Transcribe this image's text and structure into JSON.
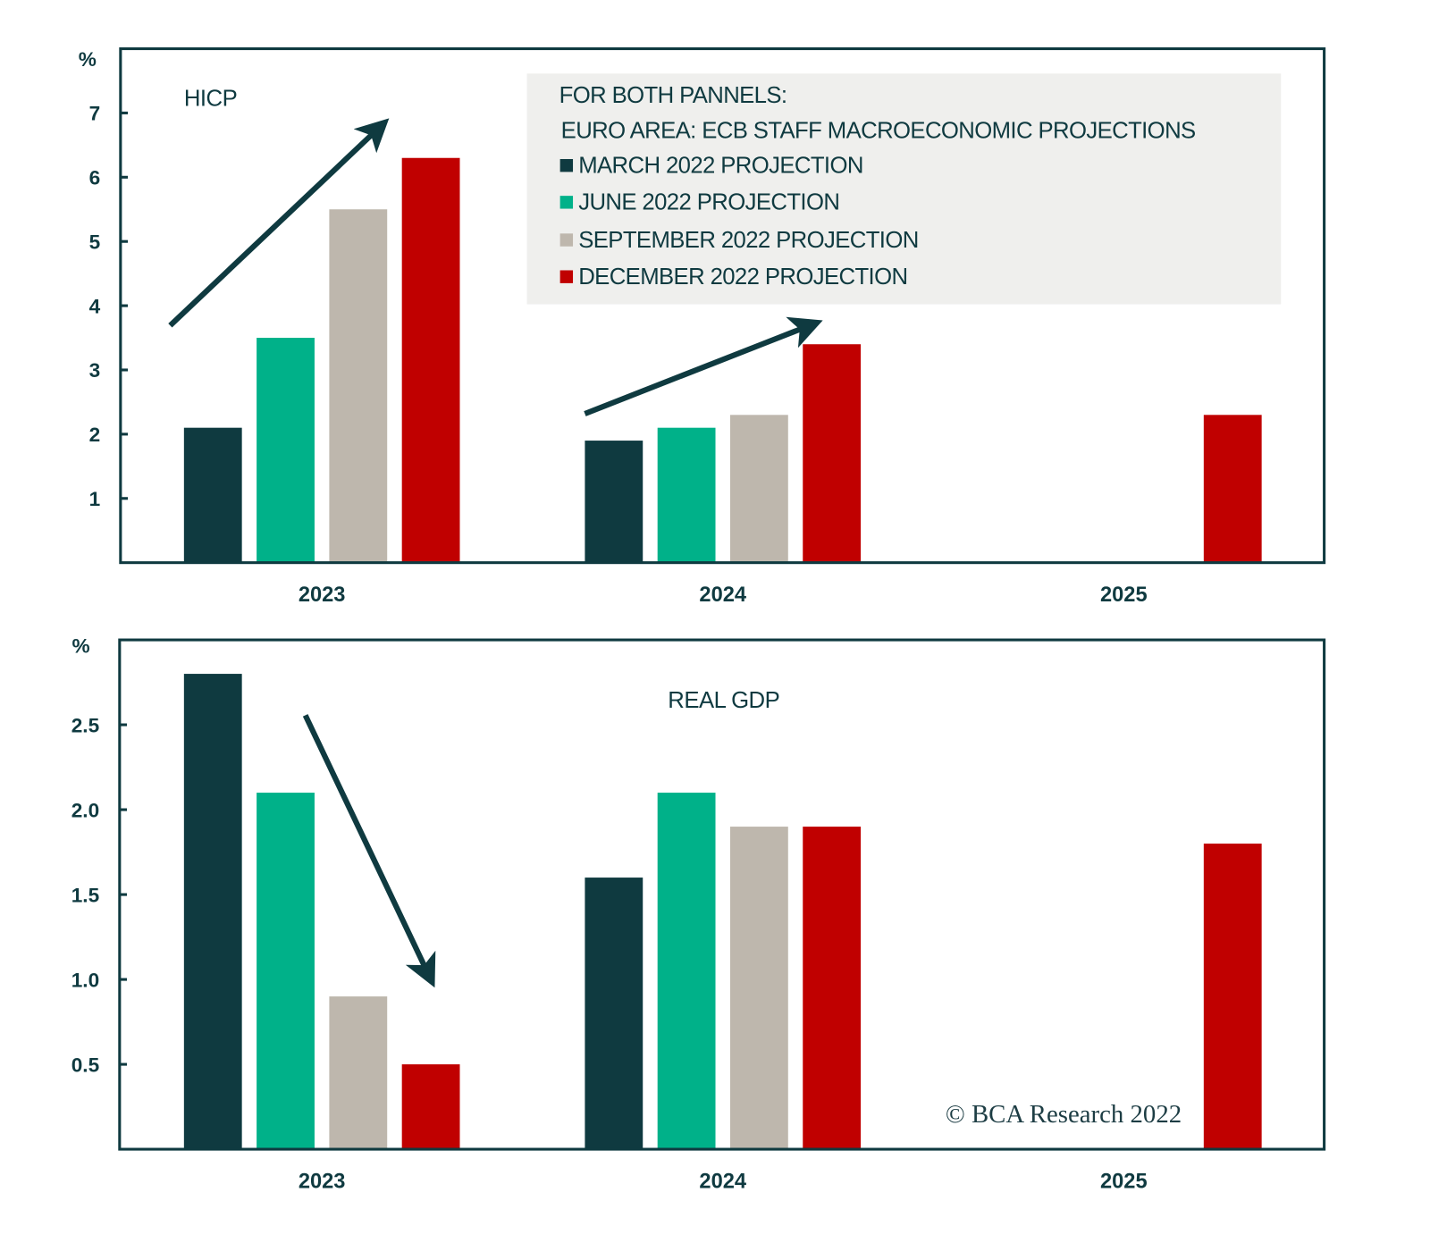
{
  "chart_data": [
    {
      "type": "bar",
      "title": "HICP",
      "ylabel": "%",
      "ylim": [
        0,
        8
      ],
      "yticks": [
        "1",
        "2",
        "3",
        "4",
        "5",
        "6",
        "7"
      ],
      "categories": [
        "2023",
        "2024",
        "2025"
      ],
      "series": [
        {
          "name": "MARCH 2022 PROJECTION",
          "color": "#0f3a40",
          "values": [
            2.1,
            1.9,
            null
          ]
        },
        {
          "name": "JUNE 2022 PROJECTION",
          "color": "#00b189",
          "values": [
            3.5,
            2.1,
            null
          ]
        },
        {
          "name": "SEPTEMBER 2022 PROJECTION",
          "color": "#beb7ad",
          "values": [
            5.5,
            2.3,
            null
          ]
        },
        {
          "name": "DECEMBER 2022 PROJECTION",
          "color": "#c00000",
          "values": [
            6.3,
            3.4,
            2.3
          ]
        }
      ]
    },
    {
      "type": "bar",
      "title": "REAL GDP",
      "ylabel": "%",
      "ylim": [
        0,
        3
      ],
      "yticks": [
        "0.5",
        "1.0",
        "1.5",
        "2.0",
        "2.5"
      ],
      "categories": [
        "2023",
        "2024",
        "2025"
      ],
      "series": [
        {
          "name": "MARCH 2022 PROJECTION",
          "color": "#0f3a40",
          "values": [
            2.8,
            1.6,
            null
          ]
        },
        {
          "name": "JUNE 2022 PROJECTION",
          "color": "#00b189",
          "values": [
            2.1,
            2.1,
            null
          ]
        },
        {
          "name": "SEPTEMBER 2022 PROJECTION",
          "color": "#beb7ad",
          "values": [
            0.9,
            1.9,
            null
          ]
        },
        {
          "name": "DECEMBER 2022 PROJECTION",
          "color": "#c00000",
          "values": [
            0.5,
            1.9,
            1.8
          ]
        }
      ]
    }
  ],
  "legend": {
    "heading1": "FOR BOTH PANNELS:",
    "heading2": "EURO AREA: ECB STAFF MACROECONOMIC PROJECTIONS",
    "items": [
      "MARCH 2022 PROJECTION",
      "JUNE 2022 PROJECTION",
      "SEPTEMBER 2022 PROJECTION",
      "DECEMBER 2022 PROJECTION"
    ]
  },
  "copyright": "© BCA Research 2022"
}
